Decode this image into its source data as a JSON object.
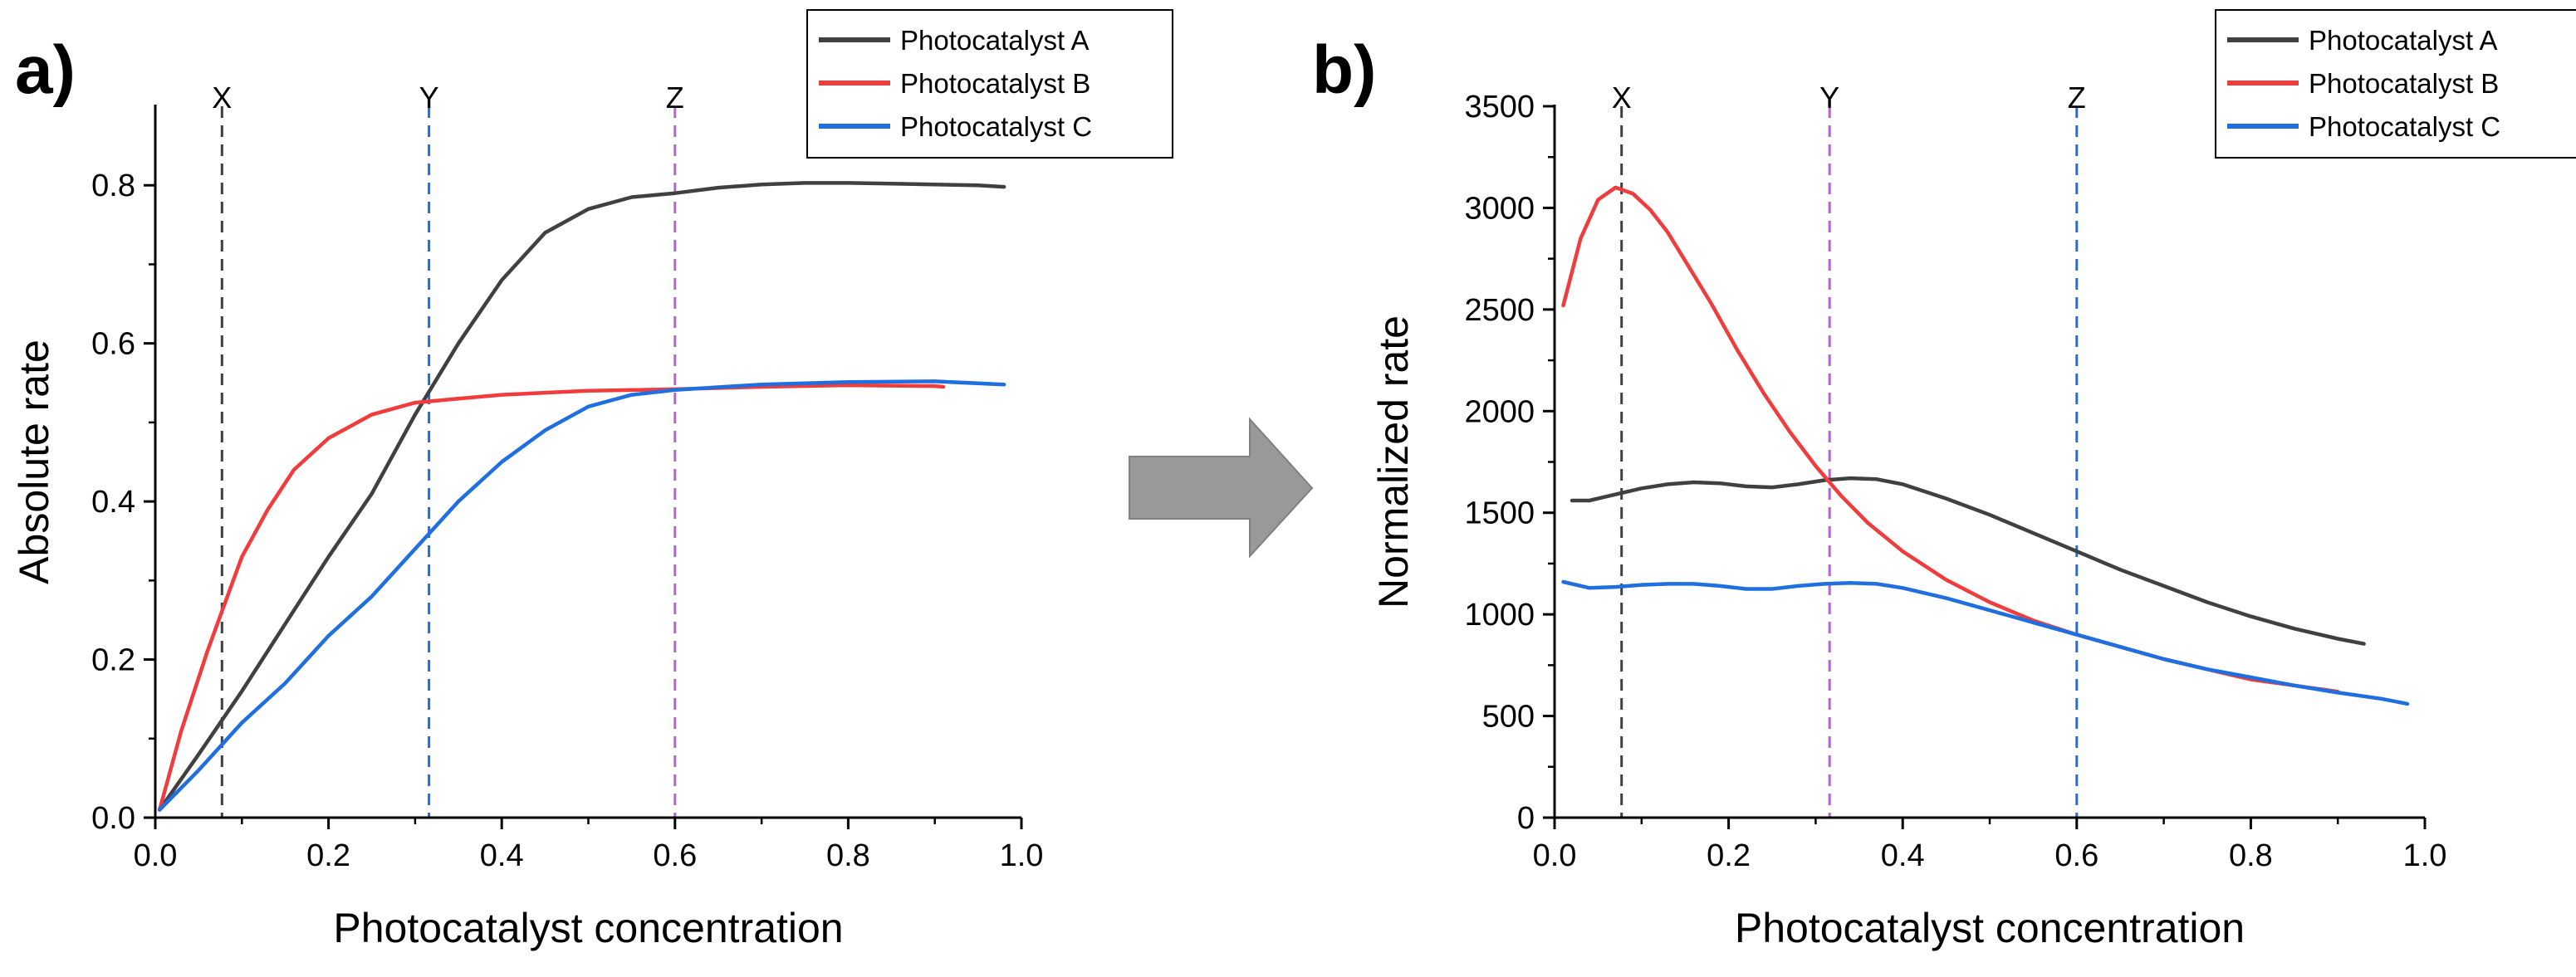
{
  "colors": {
    "photocatalyst_a": "#404040",
    "photocatalyst_b": "#f03c3c",
    "photocatalyst_c": "#1f6fe0",
    "purple": "#b266cc",
    "arrow": "#999999"
  },
  "chart_data": [
    {
      "type": "line",
      "panel_label": "a)",
      "xlabel": "Photocatalyst concentration",
      "ylabel": "Absolute rate",
      "xlim": [
        0,
        1.0
      ],
      "ylim": [
        0,
        0.9
      ],
      "xticks": [
        0.0,
        0.2,
        0.4,
        0.6,
        0.8,
        1.0
      ],
      "yticks": [
        0.0,
        0.2,
        0.4,
        0.6,
        0.8
      ],
      "xtick_labels": [
        "0.0",
        "0.2",
        "0.4",
        "0.6",
        "0.8",
        "1.0"
      ],
      "ytick_labels": [
        "0.0",
        "0.2",
        "0.4",
        "0.6",
        "0.8"
      ],
      "legend_position": "top-right",
      "vertical_lines": [
        {
          "label": "X",
          "x": 0.077,
          "color": "#404040"
        },
        {
          "label": "Y",
          "x": 0.316,
          "color": "#1f6fe0"
        },
        {
          "label": "Z",
          "x": 0.6,
          "color": "#b266cc"
        }
      ],
      "series": [
        {
          "name": "Photocatalyst A",
          "color": "#404040",
          "x": [
            0.005,
            0.05,
            0.1,
            0.15,
            0.2,
            0.25,
            0.3,
            0.35,
            0.4,
            0.45,
            0.5,
            0.55,
            0.6,
            0.65,
            0.7,
            0.75,
            0.8,
            0.85,
            0.9,
            0.95,
            0.98
          ],
          "y": [
            0.01,
            0.08,
            0.16,
            0.245,
            0.33,
            0.41,
            0.51,
            0.6,
            0.68,
            0.74,
            0.77,
            0.785,
            0.79,
            0.797,
            0.801,
            0.803,
            0.803,
            0.802,
            0.801,
            0.8,
            0.798
          ]
        },
        {
          "name": "Photocatalyst B",
          "color": "#f03c3c",
          "x": [
            0.005,
            0.03,
            0.06,
            0.08,
            0.1,
            0.13,
            0.16,
            0.2,
            0.25,
            0.3,
            0.35,
            0.4,
            0.5,
            0.6,
            0.7,
            0.8,
            0.9,
            0.91
          ],
          "y": [
            0.01,
            0.11,
            0.21,
            0.27,
            0.33,
            0.39,
            0.44,
            0.48,
            0.51,
            0.525,
            0.53,
            0.535,
            0.54,
            0.542,
            0.545,
            0.547,
            0.546,
            0.545
          ]
        },
        {
          "name": "Photocatalyst C",
          "color": "#1f6fe0",
          "x": [
            0.005,
            0.05,
            0.1,
            0.15,
            0.2,
            0.25,
            0.3,
            0.35,
            0.4,
            0.45,
            0.5,
            0.55,
            0.6,
            0.7,
            0.8,
            0.9,
            0.98
          ],
          "y": [
            0.01,
            0.06,
            0.12,
            0.17,
            0.23,
            0.28,
            0.34,
            0.4,
            0.45,
            0.49,
            0.52,
            0.535,
            0.541,
            0.548,
            0.551,
            0.552,
            0.548
          ]
        }
      ]
    },
    {
      "type": "line",
      "panel_label": "b)",
      "xlabel": "Photocatalyst concentration",
      "ylabel": "Normalized rate",
      "xlim": [
        0,
        1.0
      ],
      "ylim": [
        0,
        3500
      ],
      "xticks": [
        0.0,
        0.2,
        0.4,
        0.6,
        0.8,
        1.0
      ],
      "yticks": [
        0,
        500,
        1000,
        1500,
        2000,
        2500,
        3000,
        3500
      ],
      "xtick_labels": [
        "0.0",
        "0.2",
        "0.4",
        "0.6",
        "0.8",
        "1.0"
      ],
      "ytick_labels": [
        "0",
        "500",
        "1000",
        "1500",
        "2000",
        "2500",
        "3000",
        "3500"
      ],
      "legend_position": "top-right",
      "vertical_lines": [
        {
          "label": "X",
          "x": 0.077,
          "color": "#404040"
        },
        {
          "label": "Y",
          "x": 0.316,
          "color": "#b266cc"
        },
        {
          "label": "Z",
          "x": 0.6,
          "color": "#1f6fe0"
        }
      ],
      "series": [
        {
          "name": "Photocatalyst A",
          "color": "#404040",
          "x": [
            0.02,
            0.04,
            0.06,
            0.08,
            0.1,
            0.13,
            0.16,
            0.19,
            0.22,
            0.25,
            0.28,
            0.31,
            0.34,
            0.37,
            0.4,
            0.45,
            0.5,
            0.55,
            0.6,
            0.65,
            0.7,
            0.75,
            0.8,
            0.85,
            0.9,
            0.93
          ],
          "y": [
            1560,
            1560,
            1580,
            1600,
            1620,
            1640,
            1650,
            1645,
            1630,
            1625,
            1640,
            1660,
            1670,
            1665,
            1640,
            1570,
            1490,
            1400,
            1310,
            1220,
            1140,
            1060,
            990,
            930,
            880,
            855
          ]
        },
        {
          "name": "Photocatalyst B",
          "color": "#f03c3c",
          "x": [
            0.01,
            0.03,
            0.05,
            0.07,
            0.09,
            0.11,
            0.13,
            0.15,
            0.18,
            0.21,
            0.24,
            0.27,
            0.3,
            0.33,
            0.36,
            0.4,
            0.45,
            0.5,
            0.55,
            0.6,
            0.65,
            0.7,
            0.75,
            0.8,
            0.85,
            0.9
          ],
          "y": [
            2520,
            2850,
            3040,
            3100,
            3070,
            2990,
            2880,
            2740,
            2530,
            2300,
            2090,
            1900,
            1730,
            1580,
            1450,
            1310,
            1170,
            1060,
            970,
            900,
            840,
            780,
            730,
            680,
            650,
            620
          ]
        },
        {
          "name": "Photocatalyst C",
          "color": "#1f6fe0",
          "x": [
            0.01,
            0.04,
            0.07,
            0.1,
            0.13,
            0.16,
            0.19,
            0.22,
            0.25,
            0.28,
            0.31,
            0.34,
            0.37,
            0.4,
            0.45,
            0.5,
            0.55,
            0.6,
            0.65,
            0.7,
            0.75,
            0.8,
            0.85,
            0.9,
            0.95,
            0.98
          ],
          "y": [
            1160,
            1130,
            1135,
            1145,
            1150,
            1150,
            1140,
            1125,
            1125,
            1140,
            1150,
            1155,
            1150,
            1130,
            1080,
            1020,
            960,
            900,
            840,
            780,
            730,
            690,
            650,
            615,
            585,
            560
          ]
        }
      ]
    }
  ]
}
